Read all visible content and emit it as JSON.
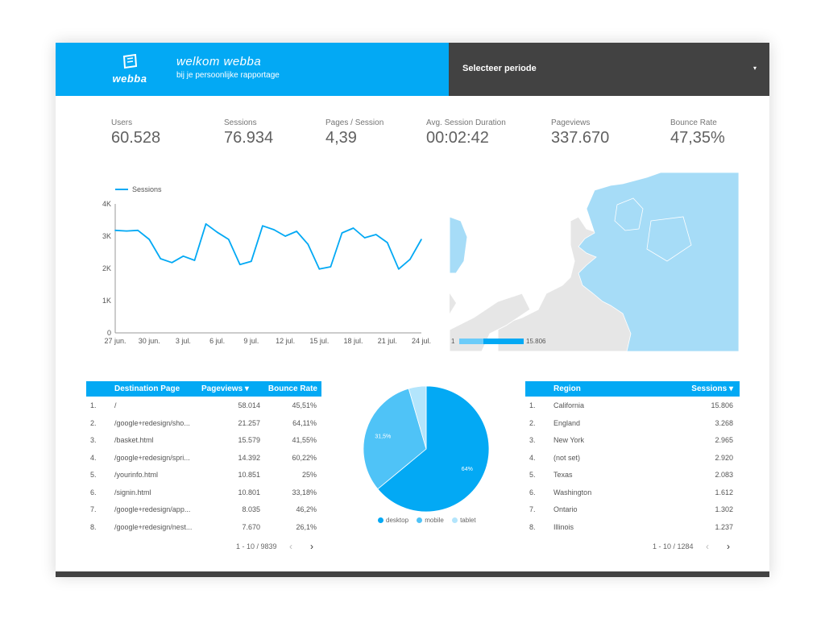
{
  "header": {
    "logo_text": "webba",
    "welcome": "welkom webba",
    "subtitle": "bij je persoonlijke rapportage",
    "period_label": "Selecteer periode",
    "blue": "#03a9f4",
    "dark": "#424242"
  },
  "kpis": [
    {
      "label": "Users",
      "value": "60.528"
    },
    {
      "label": "Sessions",
      "value": "76.934"
    },
    {
      "label": "Pages / Session",
      "value": "4,39"
    },
    {
      "label": "Avg. Session Duration",
      "value": "00:02:42"
    },
    {
      "label": "Pageviews",
      "value": "337.670"
    },
    {
      "label": "Bounce Rate",
      "value": "47,35%"
    }
  ],
  "map": {
    "legend_min": "1",
    "legend_max": "15.806",
    "fill": "#a6dcf7",
    "land": "#e6e6e6"
  },
  "table_pages": {
    "headers": [
      "Destination Page",
      "Pageviews ▾",
      "Bounce Rate"
    ],
    "rows": [
      {
        "n": "1.",
        "page": "/",
        "views": "58.014",
        "bounce": "45,51%"
      },
      {
        "n": "2.",
        "page": "/google+redesign/sho...",
        "views": "21.257",
        "bounce": "64,11%"
      },
      {
        "n": "3.",
        "page": "/basket.html",
        "views": "15.579",
        "bounce": "41,55%"
      },
      {
        "n": "4.",
        "page": "/google+redesign/spri...",
        "views": "14.392",
        "bounce": "60,22%"
      },
      {
        "n": "5.",
        "page": "/yourinfo.html",
        "views": "10.851",
        "bounce": "25%"
      },
      {
        "n": "6.",
        "page": "/signin.html",
        "views": "10.801",
        "bounce": "33,18%"
      },
      {
        "n": "7.",
        "page": "/google+redesign/app...",
        "views": "8.035",
        "bounce": "46,2%"
      },
      {
        "n": "8.",
        "page": "/google+redesign/nest...",
        "views": "7.670",
        "bounce": "26,1%"
      }
    ],
    "pager": "1 - 10 / 9839"
  },
  "table_region": {
    "headers": [
      "Region",
      "Sessions ▾"
    ],
    "rows": [
      {
        "n": "1.",
        "region": "California",
        "sessions": "15.806"
      },
      {
        "n": "2.",
        "region": "England",
        "sessions": "3.268"
      },
      {
        "n": "3.",
        "region": "New York",
        "sessions": "2.965"
      },
      {
        "n": "4.",
        "region": "(not set)",
        "sessions": "2.920"
      },
      {
        "n": "5.",
        "region": "Texas",
        "sessions": "2.083"
      },
      {
        "n": "6.",
        "region": "Washington",
        "sessions": "1.612"
      },
      {
        "n": "7.",
        "region": "Ontario",
        "sessions": "1.302"
      },
      {
        "n": "8.",
        "region": "Illinois",
        "sessions": "1.237"
      }
    ],
    "pager": "1 - 10 / 1284"
  },
  "icons": {
    "prev": "‹",
    "next": "›",
    "dropdown": "▾"
  },
  "chart_data": [
    {
      "type": "line",
      "legend": "Sessions",
      "yticks": [
        "0",
        "1K",
        "2K",
        "3K",
        "4K"
      ],
      "ylim": [
        0,
        4000
      ],
      "xticks": [
        "27 jun.",
        "30 jun.",
        "3 jul.",
        "6 jul.",
        "9 jul.",
        "12 jul.",
        "15 jul.",
        "18 jul.",
        "21 jul.",
        "24 jul."
      ],
      "x": [
        "27 jun.",
        "28 jun.",
        "29 jun.",
        "30 jun.",
        "1 jul.",
        "2 jul.",
        "3 jul.",
        "4 jul.",
        "5 jul.",
        "6 jul.",
        "7 jul.",
        "8 jul.",
        "9 jul.",
        "10 jul.",
        "11 jul.",
        "12 jul.",
        "13 jul.",
        "14 jul.",
        "15 jul.",
        "16 jul.",
        "17 jul.",
        "18 jul.",
        "19 jul.",
        "20 jul.",
        "21 jul.",
        "22 jul.",
        "23 jul.",
        "24 jul."
      ],
      "values": [
        3180,
        3160,
        3180,
        2900,
        2300,
        2180,
        2380,
        2250,
        3380,
        3120,
        2900,
        2120,
        2220,
        3320,
        3200,
        3000,
        3150,
        2750,
        1980,
        2050,
        3100,
        3250,
        2950,
        3050,
        2800,
        1980,
        2280,
        2900
      ],
      "color": "#03a9f4"
    },
    {
      "type": "pie",
      "labels": [
        "desktop",
        "mobile",
        "tablet"
      ],
      "values": [
        64,
        31.5,
        4.5
      ],
      "value_labels": [
        "64%",
        "31,5%",
        ""
      ],
      "colors": [
        "#03a9f4",
        "#4fc3f7",
        "#b3e5fc"
      ]
    }
  ]
}
